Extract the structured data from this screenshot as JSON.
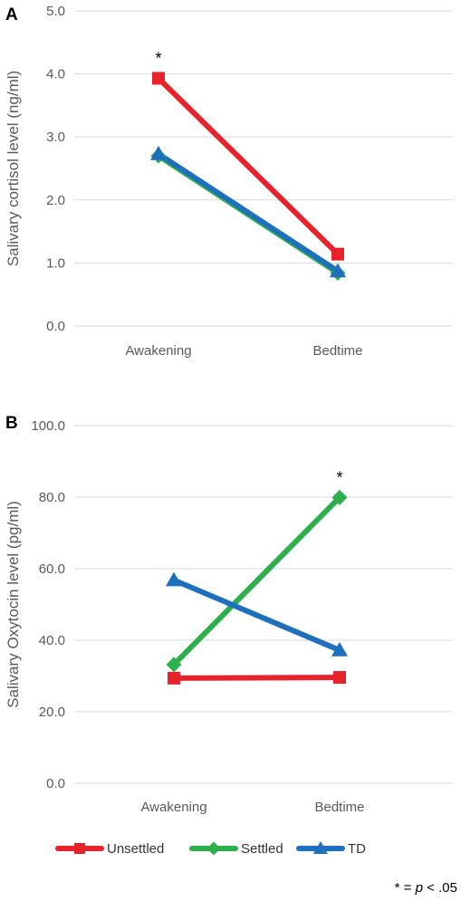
{
  "chart_data": [
    {
      "type": "line",
      "panel": "A",
      "categories": [
        "Awakening",
        "Bedtime"
      ],
      "ylabel": "Salivary cortisol level (ng/ml)",
      "xlabel": "",
      "ylim": [
        0,
        5
      ],
      "yticks": [
        "0.0",
        "1.0",
        "2.0",
        "3.0",
        "4.0",
        "5.0"
      ],
      "grid": true,
      "series": [
        {
          "name": "Unsettled",
          "values": [
            3.93,
            1.14
          ],
          "color": "#e8222a",
          "marker": "square"
        },
        {
          "name": "Settled",
          "values": [
            2.7,
            0.84
          ],
          "color": "#2db04b",
          "marker": "diamond"
        },
        {
          "name": "TD",
          "values": [
            2.73,
            0.87
          ],
          "color": "#1f6fbf",
          "marker": "triangle"
        }
      ],
      "annotations": [
        {
          "text": "*",
          "category": 0,
          "value": 3.93
        }
      ]
    },
    {
      "type": "line",
      "panel": "B",
      "categories": [
        "Awakening",
        "Bedtime"
      ],
      "ylabel": "Salivary Oxytocin level (pg/ml)",
      "xlabel": "",
      "ylim": [
        0,
        100
      ],
      "yticks": [
        "0.0",
        "20.0",
        "40.0",
        "60.0",
        "80.0",
        "100.0"
      ],
      "grid": true,
      "series": [
        {
          "name": "Unsettled",
          "values": [
            29.4,
            29.6
          ],
          "color": "#e8222a",
          "marker": "square"
        },
        {
          "name": "Settled",
          "values": [
            33.2,
            79.9
          ],
          "color": "#2db04b",
          "marker": "diamond"
        },
        {
          "name": "TD",
          "values": [
            56.8,
            37.2
          ],
          "color": "#1f6fbf",
          "marker": "triangle"
        }
      ],
      "annotations": [
        {
          "text": "*",
          "category": 1,
          "value": 79.9
        }
      ]
    }
  ],
  "legend": {
    "placement": "bottom",
    "items": [
      {
        "label": "Unsettled",
        "color": "#e8222a",
        "marker": "square"
      },
      {
        "label": "Settled",
        "color": "#2db04b",
        "marker": "diamond"
      },
      {
        "label": "TD",
        "color": "#1f6fbf",
        "marker": "triangle"
      }
    ]
  },
  "footnote": {
    "prefix": "* = ",
    "italic": "p",
    "suffix": " < .05"
  }
}
